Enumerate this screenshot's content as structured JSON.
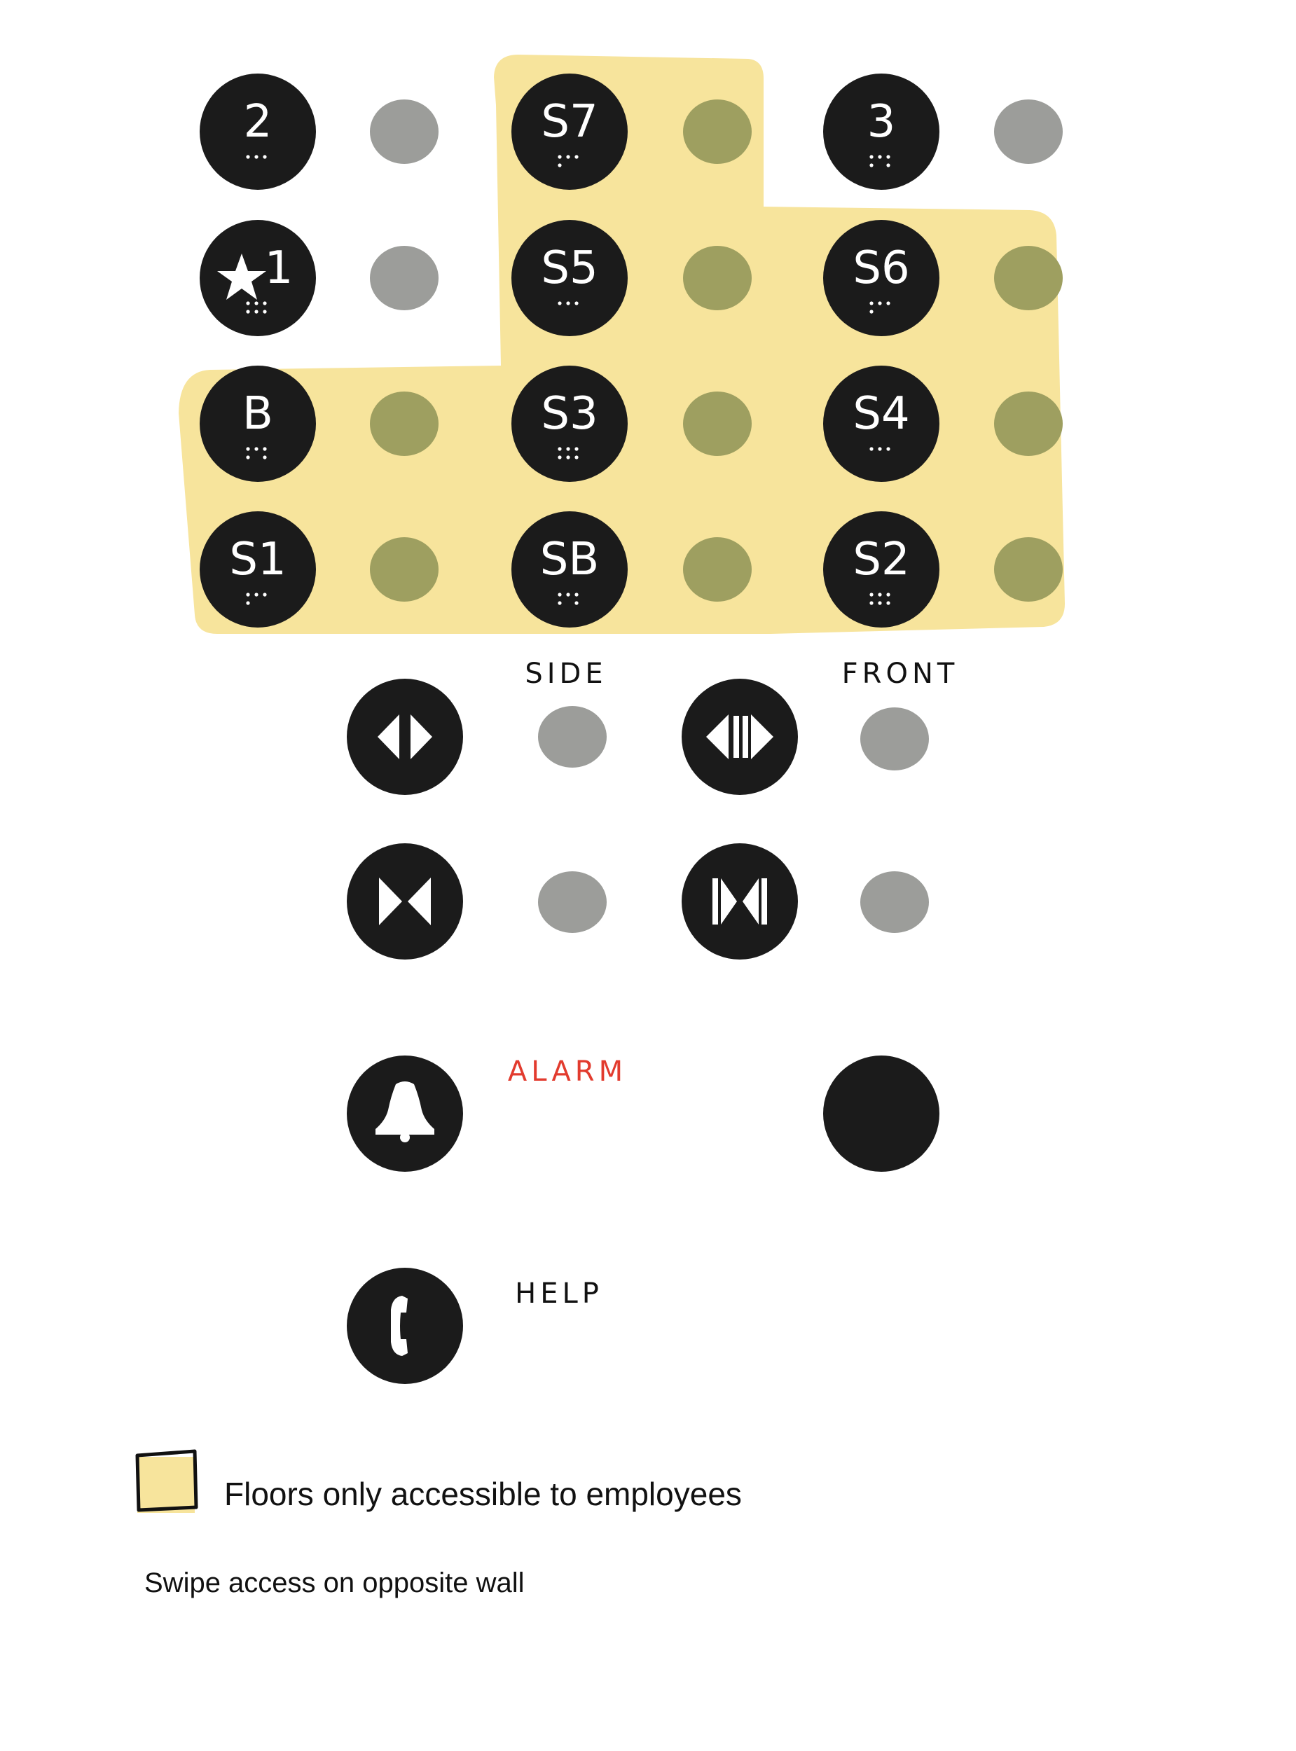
{
  "colors": {
    "button": "#1b1b1b",
    "light_gray": "#9c9d9a",
    "light_olive": "#9e9f60",
    "highlight": "#f7e49c",
    "alarm": "#e23b2e",
    "legend_outline": "#111111"
  },
  "floor_buttons": [
    {
      "label": "2",
      "employee_only": false
    },
    {
      "label": "S7",
      "employee_only": true
    },
    {
      "label": "3",
      "employee_only": false
    },
    {
      "label": "1",
      "icon": "star-icon",
      "employee_only": false
    },
    {
      "label": "S5",
      "employee_only": true
    },
    {
      "label": "S6",
      "employee_only": true
    },
    {
      "label": "B",
      "employee_only": true
    },
    {
      "label": "S3",
      "employee_only": true
    },
    {
      "label": "S4",
      "employee_only": true
    },
    {
      "label": "S1",
      "employee_only": true
    },
    {
      "label": "SB",
      "employee_only": true
    },
    {
      "label": "S2",
      "employee_only": true
    }
  ],
  "door_controls": {
    "side_label": "SIDE",
    "front_label": "FRONT",
    "buttons": [
      {
        "name": "side-door-open-button",
        "icon": "door-open-icon"
      },
      {
        "name": "front-door-open-button",
        "icon": "door-open-icon"
      },
      {
        "name": "side-door-close-button",
        "icon": "door-close-icon"
      },
      {
        "name": "front-door-close-button",
        "icon": "door-close-icon"
      }
    ]
  },
  "alarm": {
    "label": "ALARM",
    "icon": "bell-icon"
  },
  "help": {
    "label": "HELP",
    "icon": "phone-icon"
  },
  "blank_button": {
    "name": "blank-button"
  },
  "legend": {
    "employees_text": "Floors only accessible to employees",
    "swipe_text": "Swipe access on opposite wall"
  }
}
